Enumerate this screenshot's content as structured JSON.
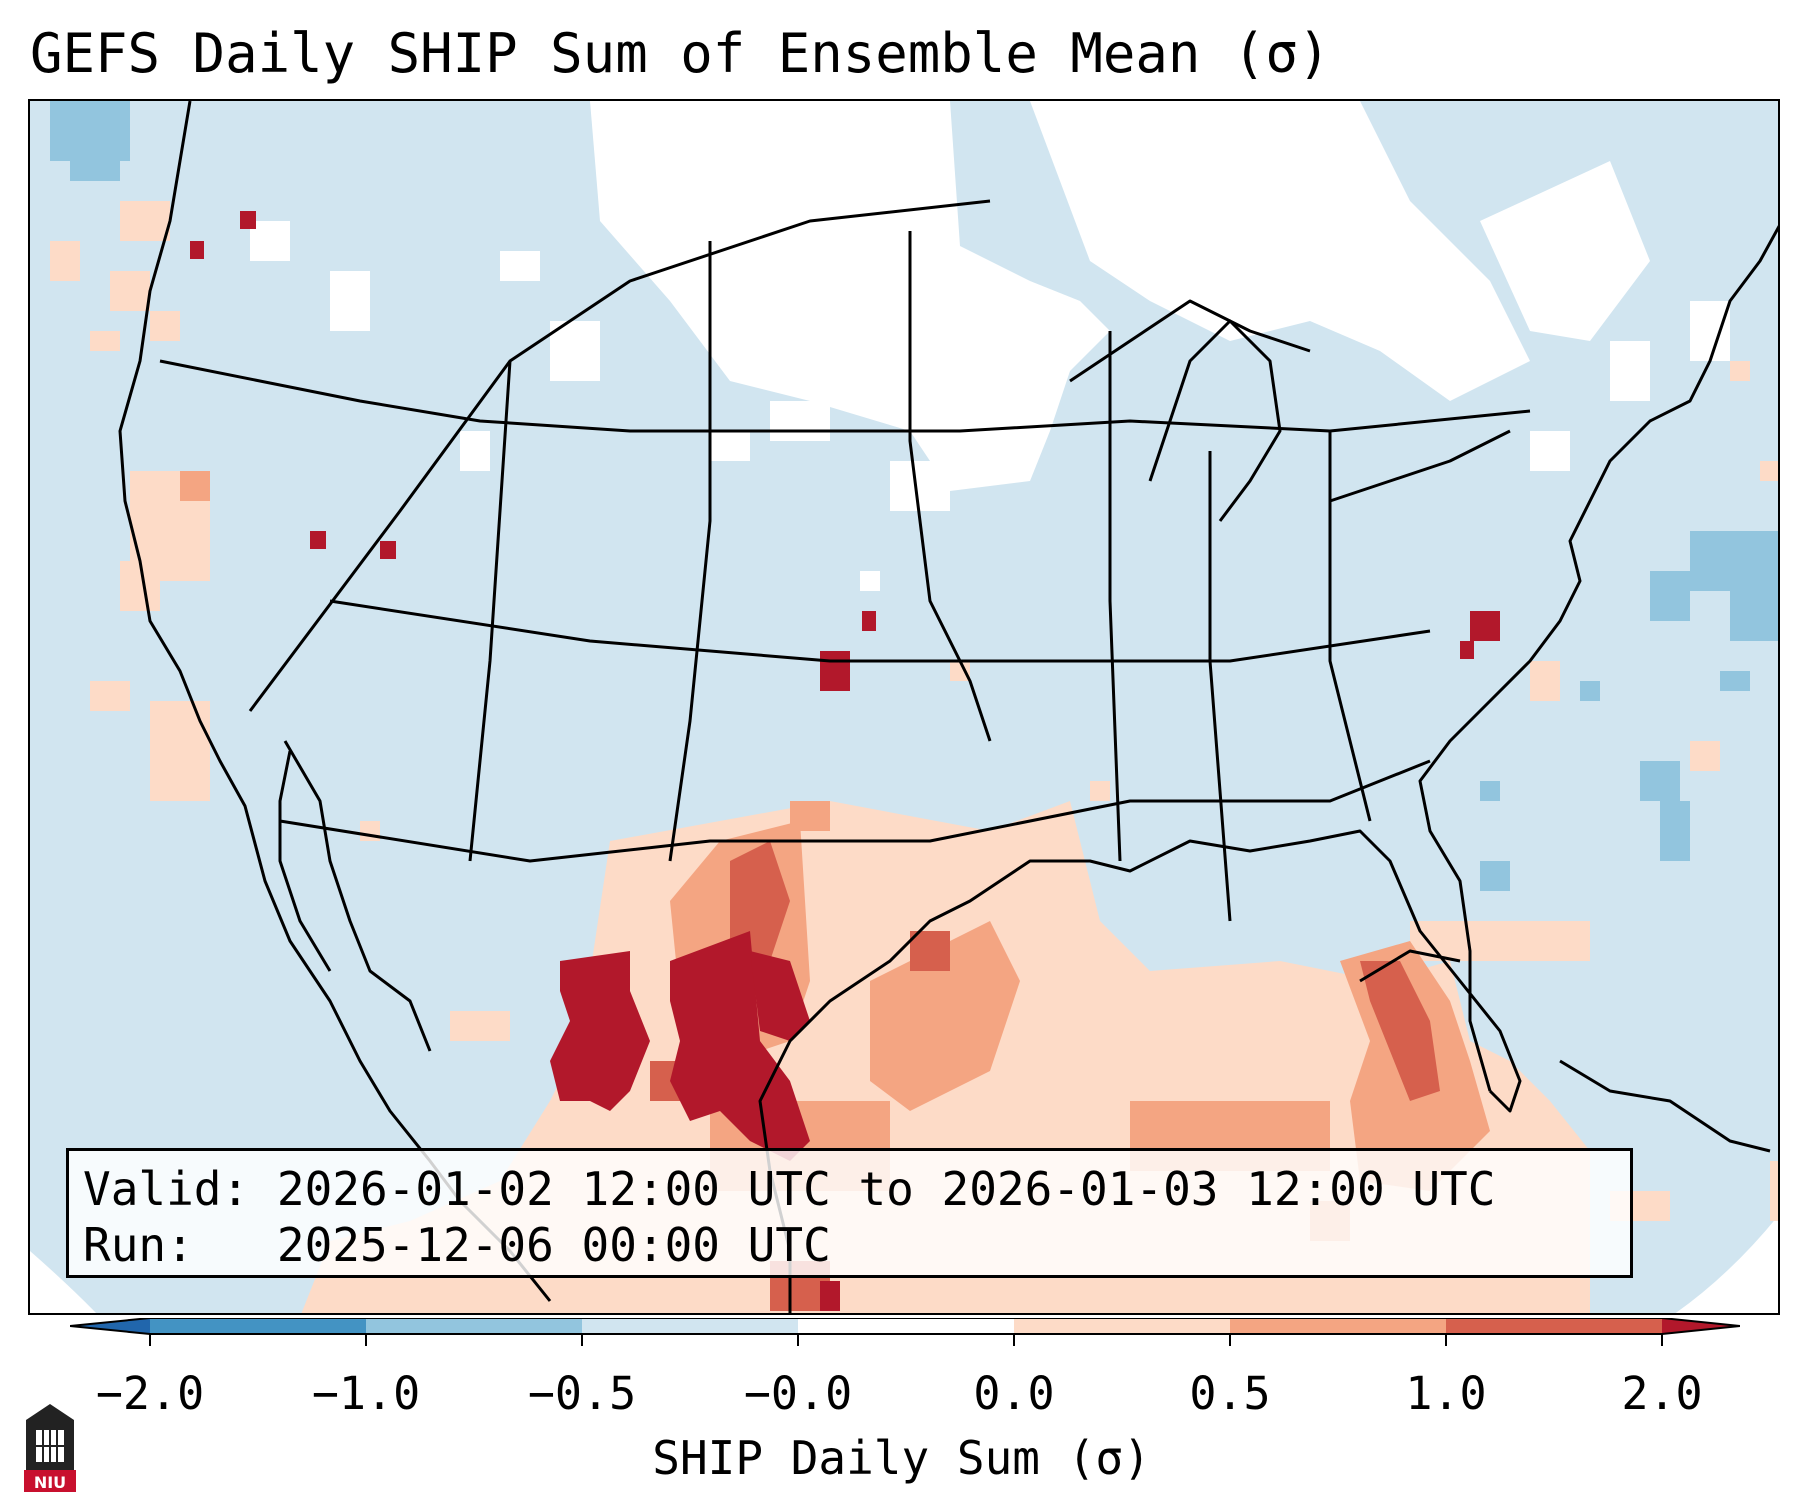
{
  "title": "GEFS Daily SHIP Sum of Ensemble Mean (σ)",
  "valid_label": "Valid:",
  "valid_value": "2026-01-02 12:00 UTC to 2026-01-03 12:00 UTC",
  "run_label": "Run:",
  "run_value": "2025-12-06 00:00 UTC",
  "colorbar": {
    "label": "SHIP Daily Sum (σ)",
    "ticks": [
      "−2.0",
      "−1.0",
      "−0.5",
      "−0.0",
      "0.0",
      "0.5",
      "1.0",
      "2.0"
    ],
    "bins": [
      {
        "range": "< -2.0",
        "color": "#2166ac"
      },
      {
        "range": "-2.0 to -1.0",
        "color": "#4393c3"
      },
      {
        "range": "-1.0 to -0.5",
        "color": "#92c5de"
      },
      {
        "range": "-0.5 to -0.0",
        "color": "#d1e5f0"
      },
      {
        "range": "-0.0 to 0.0",
        "color": "#ffffff"
      },
      {
        "range": "0.0 to 0.5",
        "color": "#fddbc7"
      },
      {
        "range": "0.5 to 1.0",
        "color": "#f4a582"
      },
      {
        "range": "1.0 to 2.0",
        "color": "#d6604d"
      },
      {
        "range": "> 2.0",
        "color": "#b2182b"
      }
    ]
  },
  "logo_text": "NIU",
  "colors": {
    "lightblue": "#d1e5f0",
    "midblue": "#92c5de",
    "lightred": "#fddbc7",
    "midred": "#f4a582",
    "red": "#d6604d",
    "darkred": "#b2182b"
  }
}
